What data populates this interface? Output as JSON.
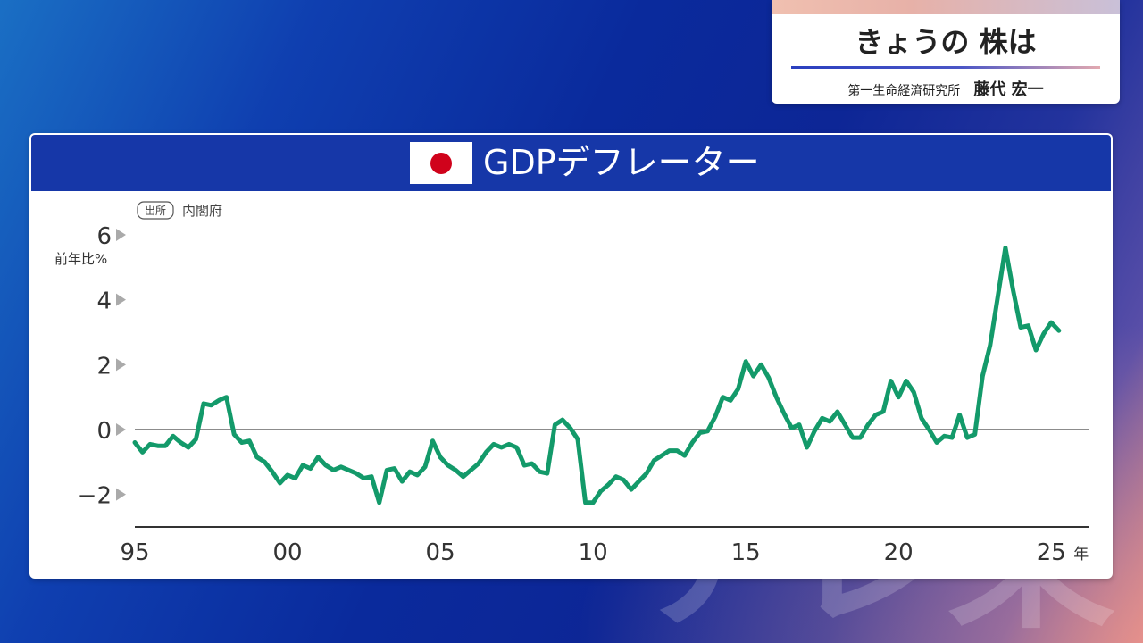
{
  "program": {
    "title": "きょうの 株は",
    "organization": "第一生命経済研究所",
    "analyst": "藤代 宏一"
  },
  "colors": {
    "line": "#139a6a",
    "header": "#1637a8",
    "flag_circle": "#d0021b"
  },
  "watermark_text": "テレ東",
  "chart_data": {
    "type": "line",
    "title": "GDPデフレーター",
    "source_label": "出所",
    "source": "内閣府",
    "ylabel": "前年比%",
    "ylim": [
      -3,
      6
    ],
    "yticks": [
      {
        "value": 6,
        "label": "6"
      },
      {
        "value": 4,
        "label": "4"
      },
      {
        "value": 2,
        "label": "2"
      },
      {
        "value": 0,
        "label": "0"
      },
      {
        "value": -2,
        "label": "−2"
      }
    ],
    "xlim": [
      1995.0,
      2026.25
    ],
    "xticks": [
      {
        "value": 1995,
        "label": "95"
      },
      {
        "value": 2000,
        "label": "00"
      },
      {
        "value": 2005,
        "label": "05"
      },
      {
        "value": 2010,
        "label": "10"
      },
      {
        "value": 2015,
        "label": "15"
      },
      {
        "value": 2020,
        "label": "20"
      },
      {
        "value": 2025,
        "label": "25"
      }
    ],
    "x_unit": "年",
    "grid": false,
    "series": [
      {
        "name": "",
        "color": "#139a6a",
        "points": [
          [
            1995.0,
            -0.4
          ],
          [
            1995.25,
            -0.7
          ],
          [
            1995.5,
            -0.45
          ],
          [
            1995.75,
            -0.5
          ],
          [
            1996.0,
            -0.5
          ],
          [
            1996.25,
            -0.2
          ],
          [
            1996.5,
            -0.4
          ],
          [
            1996.75,
            -0.55
          ],
          [
            1997.0,
            -0.3
          ],
          [
            1997.25,
            0.8
          ],
          [
            1997.5,
            0.75
          ],
          [
            1997.75,
            0.9
          ],
          [
            1998.0,
            1.0
          ],
          [
            1998.25,
            -0.15
          ],
          [
            1998.5,
            -0.4
          ],
          [
            1998.75,
            -0.35
          ],
          [
            1999.0,
            -0.85
          ],
          [
            1999.25,
            -1.0
          ],
          [
            1999.5,
            -1.3
          ],
          [
            1999.75,
            -1.65
          ],
          [
            2000.0,
            -1.4
          ],
          [
            2000.25,
            -1.5
          ],
          [
            2000.5,
            -1.1
          ],
          [
            2000.75,
            -1.2
          ],
          [
            2001.0,
            -0.85
          ],
          [
            2001.25,
            -1.1
          ],
          [
            2001.5,
            -1.25
          ],
          [
            2001.75,
            -1.15
          ],
          [
            2002.0,
            -1.25
          ],
          [
            2002.25,
            -1.35
          ],
          [
            2002.5,
            -1.5
          ],
          [
            2002.75,
            -1.45
          ],
          [
            2003.0,
            -2.25
          ],
          [
            2003.25,
            -1.25
          ],
          [
            2003.5,
            -1.2
          ],
          [
            2003.75,
            -1.6
          ],
          [
            2004.0,
            -1.3
          ],
          [
            2004.25,
            -1.4
          ],
          [
            2004.5,
            -1.15
          ],
          [
            2004.75,
            -0.35
          ],
          [
            2005.0,
            -0.85
          ],
          [
            2005.25,
            -1.1
          ],
          [
            2005.5,
            -1.25
          ],
          [
            2005.75,
            -1.45
          ],
          [
            2006.0,
            -1.25
          ],
          [
            2006.25,
            -1.05
          ],
          [
            2006.5,
            -0.7
          ],
          [
            2006.75,
            -0.45
          ],
          [
            2007.0,
            -0.55
          ],
          [
            2007.25,
            -0.45
          ],
          [
            2007.5,
            -0.55
          ],
          [
            2007.75,
            -1.1
          ],
          [
            2008.0,
            -1.05
          ],
          [
            2008.25,
            -1.3
          ],
          [
            2008.5,
            -1.35
          ],
          [
            2008.75,
            0.15
          ],
          [
            2009.0,
            0.3
          ],
          [
            2009.25,
            0.05
          ],
          [
            2009.5,
            -0.3
          ],
          [
            2009.75,
            -2.25
          ],
          [
            2010.0,
            -2.25
          ],
          [
            2010.25,
            -1.9
          ],
          [
            2010.5,
            -1.7
          ],
          [
            2010.75,
            -1.45
          ],
          [
            2011.0,
            -1.55
          ],
          [
            2011.25,
            -1.85
          ],
          [
            2011.5,
            -1.6
          ],
          [
            2011.75,
            -1.35
          ],
          [
            2012.0,
            -0.95
          ],
          [
            2012.25,
            -0.8
          ],
          [
            2012.5,
            -0.65
          ],
          [
            2012.75,
            -0.65
          ],
          [
            2013.0,
            -0.8
          ],
          [
            2013.25,
            -0.4
          ],
          [
            2013.5,
            -0.1
          ],
          [
            2013.75,
            -0.05
          ],
          [
            2014.0,
            0.4
          ],
          [
            2014.25,
            1.0
          ],
          [
            2014.5,
            0.9
          ],
          [
            2014.75,
            1.25
          ],
          [
            2015.0,
            2.1
          ],
          [
            2015.25,
            1.65
          ],
          [
            2015.5,
            2.0
          ],
          [
            2015.75,
            1.6
          ],
          [
            2016.0,
            1.0
          ],
          [
            2016.25,
            0.5
          ],
          [
            2016.5,
            0.05
          ],
          [
            2016.75,
            0.15
          ],
          [
            2017.0,
            -0.55
          ],
          [
            2017.25,
            -0.05
          ],
          [
            2017.5,
            0.35
          ],
          [
            2017.75,
            0.25
          ],
          [
            2018.0,
            0.55
          ],
          [
            2018.25,
            0.15
          ],
          [
            2018.5,
            -0.25
          ],
          [
            2018.75,
            -0.25
          ],
          [
            2019.0,
            0.15
          ],
          [
            2019.25,
            0.45
          ],
          [
            2019.5,
            0.55
          ],
          [
            2019.75,
            1.5
          ],
          [
            2020.0,
            1.0
          ],
          [
            2020.25,
            1.5
          ],
          [
            2020.5,
            1.15
          ],
          [
            2020.75,
            0.35
          ],
          [
            2021.0,
            0.0
          ],
          [
            2021.25,
            -0.4
          ],
          [
            2021.5,
            -0.2
          ],
          [
            2021.75,
            -0.25
          ],
          [
            2022.0,
            0.45
          ],
          [
            2022.25,
            -0.25
          ],
          [
            2022.5,
            -0.15
          ],
          [
            2022.75,
            1.65
          ],
          [
            2023.0,
            2.6
          ],
          [
            2023.25,
            4.1
          ],
          [
            2023.5,
            5.6
          ],
          [
            2023.75,
            4.3
          ],
          [
            2024.0,
            3.15
          ],
          [
            2024.25,
            3.2
          ],
          [
            2024.5,
            2.45
          ],
          [
            2024.75,
            2.95
          ],
          [
            2025.0,
            3.3
          ],
          [
            2025.25,
            3.05
          ]
        ]
      }
    ]
  }
}
